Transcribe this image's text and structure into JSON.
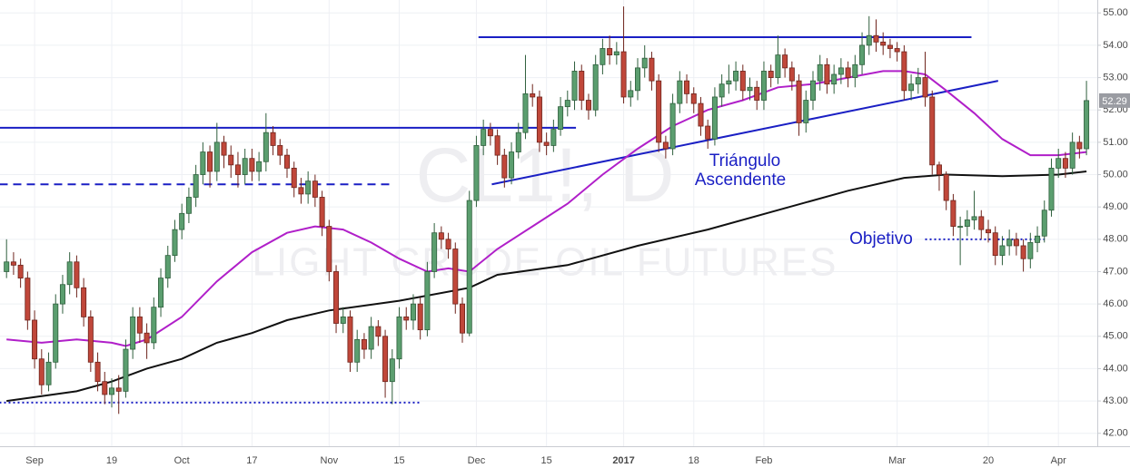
{
  "chart_data": {
    "type": "candlestick",
    "watermark": {
      "symbol": "CL1!, D",
      "name": "LIGHT CRUDE OIL FUTURES"
    },
    "categories": [
      null,
      null,
      null,
      null,
      "Sep",
      null,
      null,
      null,
      null,
      null,
      null,
      null,
      null,
      null,
      null,
      "19",
      null,
      null,
      null,
      null,
      null,
      null,
      null,
      null,
      null,
      "Oct",
      null,
      null,
      null,
      null,
      null,
      null,
      null,
      null,
      null,
      "17",
      null,
      null,
      null,
      null,
      null,
      null,
      null,
      null,
      null,
      null,
      "Nov",
      null,
      null,
      null,
      null,
      null,
      null,
      null,
      null,
      null,
      "15",
      null,
      null,
      null,
      null,
      null,
      null,
      null,
      null,
      null,
      null,
      "Dec",
      null,
      null,
      null,
      null,
      null,
      null,
      null,
      null,
      null,
      "15",
      null,
      null,
      null,
      null,
      null,
      null,
      null,
      null,
      null,
      null,
      "2017",
      null,
      null,
      null,
      null,
      null,
      null,
      null,
      null,
      null,
      "18",
      null,
      null,
      null,
      null,
      null,
      null,
      null,
      null,
      null,
      "Feb",
      null,
      null,
      null,
      null,
      null,
      null,
      null,
      null,
      null,
      null,
      null,
      null,
      null,
      null,
      null,
      null,
      null,
      null,
      "Mar",
      null,
      null,
      null,
      null,
      null,
      null,
      null,
      null,
      null,
      null,
      null,
      null,
      "20",
      null,
      null,
      null,
      null,
      null,
      null,
      null,
      null,
      null,
      "Apr",
      null,
      null,
      null,
      null
    ],
    "ohlc": [
      [
        47.0,
        48.0,
        46.8,
        47.3
      ],
      [
        47.3,
        47.6,
        46.9,
        47.2
      ],
      [
        47.2,
        47.4,
        46.5,
        46.8
      ],
      [
        46.8,
        47.0,
        45.2,
        45.5
      ],
      [
        45.5,
        45.8,
        44.0,
        44.3
      ],
      [
        44.3,
        44.6,
        43.2,
        43.5
      ],
      [
        43.5,
        44.5,
        43.3,
        44.2
      ],
      [
        44.2,
        46.3,
        44.0,
        46.0
      ],
      [
        46.0,
        46.9,
        45.7,
        46.6
      ],
      [
        46.6,
        47.6,
        46.3,
        47.3
      ],
      [
        47.3,
        47.5,
        46.2,
        46.5
      ],
      [
        46.5,
        46.8,
        45.3,
        45.6
      ],
      [
        45.6,
        45.8,
        43.9,
        44.2
      ],
      [
        44.2,
        44.5,
        43.3,
        43.6
      ],
      [
        43.6,
        43.9,
        42.9,
        43.2
      ],
      [
        43.2,
        43.7,
        42.8,
        43.4
      ],
      [
        43.4,
        43.8,
        42.6,
        43.3
      ],
      [
        43.3,
        44.9,
        43.1,
        44.6
      ],
      [
        44.6,
        45.9,
        44.3,
        45.6
      ],
      [
        45.6,
        45.9,
        44.8,
        45.1
      ],
      [
        45.1,
        45.4,
        44.3,
        44.8
      ],
      [
        44.8,
        46.2,
        44.6,
        45.9
      ],
      [
        45.9,
        47.1,
        45.6,
        46.8
      ],
      [
        46.8,
        47.8,
        46.5,
        47.5
      ],
      [
        47.5,
        48.6,
        47.3,
        48.3
      ],
      [
        48.3,
        49.1,
        48.0,
        48.8
      ],
      [
        48.8,
        49.6,
        48.5,
        49.3
      ],
      [
        49.3,
        50.3,
        49.0,
        50.0
      ],
      [
        50.0,
        51.0,
        49.7,
        50.7
      ],
      [
        50.7,
        50.9,
        49.6,
        50.1
      ],
      [
        50.1,
        51.6,
        49.8,
        51.0
      ],
      [
        51.0,
        51.2,
        50.2,
        50.6
      ],
      [
        50.6,
        50.9,
        49.9,
        50.3
      ],
      [
        50.3,
        50.7,
        49.6,
        50.0
      ],
      [
        50.0,
        50.8,
        49.7,
        50.5
      ],
      [
        50.5,
        50.8,
        49.8,
        50.1
      ],
      [
        50.1,
        50.7,
        49.8,
        50.4
      ],
      [
        50.4,
        51.9,
        50.1,
        51.3
      ],
      [
        51.3,
        51.5,
        50.6,
        50.9
      ],
      [
        50.9,
        51.1,
        50.3,
        50.6
      ],
      [
        50.6,
        50.8,
        49.9,
        50.2
      ],
      [
        50.2,
        50.4,
        49.3,
        49.6
      ],
      [
        49.6,
        49.9,
        49.1,
        49.4
      ],
      [
        49.4,
        50.1,
        49.1,
        49.8
      ],
      [
        49.8,
        50.0,
        49.0,
        49.3
      ],
      [
        49.3,
        49.5,
        48.1,
        48.4
      ],
      [
        48.4,
        48.6,
        46.7,
        47.0
      ],
      [
        47.0,
        47.2,
        45.1,
        45.4
      ],
      [
        45.4,
        45.9,
        45.1,
        45.6
      ],
      [
        45.6,
        45.8,
        43.9,
        44.2
      ],
      [
        44.2,
        45.2,
        43.9,
        44.9
      ],
      [
        44.9,
        45.1,
        44.3,
        44.6
      ],
      [
        44.6,
        45.6,
        44.3,
        45.3
      ],
      [
        45.3,
        45.5,
        44.7,
        45.0
      ],
      [
        45.0,
        45.2,
        43.1,
        43.6
      ],
      [
        43.6,
        44.6,
        42.9,
        44.3
      ],
      [
        44.3,
        45.9,
        44.0,
        45.6
      ],
      [
        45.6,
        45.9,
        45.2,
        45.5
      ],
      [
        45.5,
        46.3,
        45.2,
        46.0
      ],
      [
        46.0,
        46.2,
        44.9,
        45.2
      ],
      [
        45.2,
        47.3,
        45.0,
        47.0
      ],
      [
        47.0,
        48.5,
        46.8,
        48.2
      ],
      [
        48.2,
        48.4,
        47.7,
        48.0
      ],
      [
        48.0,
        48.2,
        47.4,
        47.7
      ],
      [
        47.7,
        47.9,
        45.7,
        46.0
      ],
      [
        46.0,
        46.2,
        44.8,
        45.1
      ],
      [
        45.1,
        49.5,
        45.0,
        49.2
      ],
      [
        49.2,
        51.2,
        49.0,
        50.9
      ],
      [
        50.9,
        51.7,
        50.6,
        51.4
      ],
      [
        51.4,
        51.6,
        50.9,
        51.2
      ],
      [
        51.2,
        51.4,
        50.3,
        50.6
      ],
      [
        50.6,
        50.8,
        49.6,
        49.9
      ],
      [
        49.9,
        51.0,
        49.7,
        50.7
      ],
      [
        50.7,
        51.6,
        50.5,
        51.3
      ],
      [
        51.3,
        53.7,
        51.1,
        52.5
      ],
      [
        52.5,
        52.8,
        52.1,
        52.4
      ],
      [
        52.4,
        52.6,
        50.7,
        51.0
      ],
      [
        51.0,
        51.3,
        50.6,
        50.9
      ],
      [
        50.9,
        51.7,
        50.7,
        51.4
      ],
      [
        51.4,
        52.4,
        51.2,
        52.1
      ],
      [
        52.1,
        52.6,
        51.8,
        52.3
      ],
      [
        52.3,
        53.5,
        52.0,
        53.2
      ],
      [
        53.2,
        53.4,
        52.0,
        52.3
      ],
      [
        52.3,
        52.5,
        51.7,
        52.0
      ],
      [
        52.0,
        53.7,
        51.8,
        53.4
      ],
      [
        53.4,
        54.2,
        53.1,
        53.9
      ],
      [
        53.9,
        54.3,
        53.4,
        53.7
      ],
      [
        53.7,
        54.1,
        53.4,
        53.8
      ],
      [
        53.8,
        55.2,
        52.2,
        52.4
      ],
      [
        52.4,
        52.9,
        52.1,
        52.6
      ],
      [
        52.6,
        53.6,
        52.3,
        53.3
      ],
      [
        53.3,
        54.0,
        53.0,
        53.6
      ],
      [
        53.6,
        53.8,
        52.6,
        52.9
      ],
      [
        52.9,
        53.1,
        50.7,
        51.0
      ],
      [
        51.0,
        51.2,
        50.5,
        50.8
      ],
      [
        50.8,
        52.5,
        50.6,
        52.2
      ],
      [
        52.2,
        53.2,
        51.9,
        52.9
      ],
      [
        52.9,
        53.1,
        52.2,
        52.5
      ],
      [
        52.5,
        52.7,
        51.9,
        52.2
      ],
      [
        52.2,
        52.4,
        51.2,
        51.5
      ],
      [
        51.5,
        51.7,
        50.8,
        51.1
      ],
      [
        51.1,
        52.7,
        50.9,
        52.4
      ],
      [
        52.4,
        53.1,
        52.1,
        52.8
      ],
      [
        52.8,
        53.4,
        52.5,
        52.9
      ],
      [
        52.9,
        53.5,
        52.6,
        53.2
      ],
      [
        53.2,
        53.4,
        52.3,
        52.6
      ],
      [
        52.6,
        53.0,
        52.3,
        52.7
      ],
      [
        52.7,
        52.9,
        52.0,
        52.3
      ],
      [
        52.3,
        53.5,
        52.0,
        53.2
      ],
      [
        53.2,
        53.4,
        52.7,
        53.0
      ],
      [
        53.0,
        54.3,
        52.8,
        53.7
      ],
      [
        53.7,
        53.9,
        53.0,
        53.3
      ],
      [
        53.3,
        53.5,
        52.6,
        52.9
      ],
      [
        52.9,
        53.1,
        51.2,
        51.6
      ],
      [
        51.6,
        52.6,
        51.3,
        52.3
      ],
      [
        52.3,
        53.2,
        52.0,
        52.9
      ],
      [
        52.9,
        53.7,
        52.6,
        53.4
      ],
      [
        53.4,
        53.6,
        52.5,
        52.8
      ],
      [
        52.8,
        53.4,
        52.5,
        53.1
      ],
      [
        53.1,
        53.6,
        52.8,
        53.3
      ],
      [
        53.3,
        53.5,
        52.7,
        53.0
      ],
      [
        53.0,
        53.7,
        52.7,
        53.4
      ],
      [
        53.4,
        54.4,
        53.1,
        54.0
      ],
      [
        54.0,
        54.9,
        53.7,
        54.3
      ],
      [
        54.3,
        54.8,
        53.8,
        54.1
      ],
      [
        54.1,
        54.4,
        53.7,
        54.0
      ],
      [
        54.0,
        54.2,
        53.6,
        53.9
      ],
      [
        53.9,
        54.1,
        53.5,
        53.8
      ],
      [
        53.8,
        54.0,
        52.3,
        52.6
      ],
      [
        52.6,
        53.1,
        52.3,
        52.8
      ],
      [
        52.8,
        53.3,
        52.5,
        53.0
      ],
      [
        53.0,
        53.8,
        52.1,
        52.4
      ],
      [
        52.4,
        52.6,
        50.0,
        50.3
      ],
      [
        50.3,
        50.4,
        49.5,
        50.0
      ],
      [
        50.0,
        50.1,
        48.9,
        49.2
      ],
      [
        49.2,
        49.4,
        48.1,
        48.4
      ],
      [
        48.4,
        48.7,
        47.2,
        48.4
      ],
      [
        48.4,
        48.9,
        48.1,
        48.6
      ],
      [
        48.6,
        49.5,
        48.3,
        48.7
      ],
      [
        48.7,
        48.9,
        48.0,
        48.3
      ],
      [
        48.3,
        48.6,
        47.9,
        48.2
      ],
      [
        48.2,
        48.4,
        47.2,
        47.5
      ],
      [
        47.5,
        48.1,
        47.2,
        47.8
      ],
      [
        47.8,
        48.3,
        47.5,
        48.0
      ],
      [
        48.0,
        48.2,
        47.5,
        47.8
      ],
      [
        47.8,
        48.0,
        47.0,
        47.4
      ],
      [
        47.4,
        48.2,
        47.1,
        47.9
      ],
      [
        47.9,
        48.4,
        47.6,
        48.1
      ],
      [
        48.1,
        49.2,
        47.9,
        48.9
      ],
      [
        48.9,
        50.5,
        48.7,
        50.2
      ],
      [
        50.2,
        50.8,
        49.9,
        50.5
      ],
      [
        50.5,
        50.7,
        49.9,
        50.2
      ],
      [
        50.2,
        51.3,
        50.0,
        51.0
      ],
      [
        51.0,
        51.2,
        50.5,
        50.8
      ],
      [
        50.8,
        52.9,
        50.6,
        52.29
      ]
    ],
    "up_color": "#5b9e6f",
    "down_color": "#c0473a",
    "last_price_label": "52.29",
    "moving_averages": [
      {
        "color": "#b01fc9",
        "x": [
          0,
          5,
          10,
          15,
          17,
          20,
          25,
          30,
          35,
          40,
          44,
          48,
          52,
          56,
          60,
          63,
          66,
          70,
          75,
          80,
          85,
          90,
          95,
          100,
          105,
          110,
          115,
          120,
          125,
          128,
          131,
          134,
          138,
          142,
          146,
          150,
          154
        ],
        "values": [
          44.9,
          44.8,
          44.9,
          44.8,
          44.7,
          44.9,
          45.6,
          46.7,
          47.6,
          48.2,
          48.4,
          48.3,
          47.9,
          47.4,
          47.0,
          47.1,
          47.0,
          47.7,
          48.4,
          49.1,
          50.0,
          50.8,
          51.5,
          52.0,
          52.3,
          52.7,
          52.8,
          53.0,
          53.2,
          53.2,
          53.1,
          52.6,
          51.9,
          51.1,
          50.6,
          50.6,
          50.7
        ]
      },
      {
        "color": "#111111",
        "x": [
          0,
          10,
          15,
          20,
          25,
          30,
          35,
          40,
          46,
          56,
          66,
          70,
          80,
          90,
          100,
          110,
          120,
          128,
          134,
          142,
          150,
          154
        ],
        "values": [
          43.0,
          43.3,
          43.6,
          44.0,
          44.3,
          44.8,
          45.1,
          45.5,
          45.8,
          46.1,
          46.5,
          46.9,
          47.2,
          47.8,
          48.3,
          48.9,
          49.5,
          49.9,
          50.0,
          49.95,
          50.0,
          50.1
        ]
      }
    ],
    "drawings": [
      {
        "style": "solid",
        "color": "#1a1fc4",
        "x": [
          -1,
          81.2
        ],
        "y": [
          51.45,
          51.45
        ]
      },
      {
        "style": "dashed",
        "color": "#1a1fc4",
        "x": [
          -1,
          55
        ],
        "y": [
          49.7,
          49.7
        ]
      },
      {
        "style": "solid",
        "color": "#1a1fc4",
        "x": [
          67.3,
          137.6
        ],
        "y": [
          54.25,
          54.25
        ]
      },
      {
        "style": "solid",
        "color": "#1a1fc4",
        "x": [
          69.2,
          141.4
        ],
        "y": [
          49.7,
          52.9
        ]
      },
      {
        "style": "dotted",
        "color": "#1a1fc4",
        "x": [
          131,
          148
        ],
        "y": [
          48.0,
          48.0
        ]
      },
      {
        "style": "dotted",
        "color": "#1a1fc4",
        "x": [
          -1,
          59
        ],
        "y": [
          42.95,
          42.95
        ]
      }
    ],
    "annotations": [
      "Triángulo",
      "Ascendente",
      "Objetivo"
    ],
    "ylim": [
      41.6,
      55.4
    ],
    "yticks": [
      {
        "value": 42,
        "label": "42.00"
      },
      {
        "value": 43,
        "label": "43.00"
      },
      {
        "value": 44,
        "label": "44.00"
      },
      {
        "value": 45,
        "label": "45.00"
      },
      {
        "value": 46,
        "label": "46.00"
      },
      {
        "value": 47,
        "label": "47.00"
      },
      {
        "value": 48,
        "label": "48.00"
      },
      {
        "value": 49,
        "label": "49.00"
      },
      {
        "value": 50,
        "label": "50.00"
      },
      {
        "value": 51,
        "label": "51.00"
      },
      {
        "value": 52,
        "label": "52.00"
      },
      {
        "value": 53,
        "label": "53.00"
      },
      {
        "value": 54,
        "label": "54.00"
      },
      {
        "value": 55,
        "label": "55.00"
      }
    ],
    "grid": true
  }
}
